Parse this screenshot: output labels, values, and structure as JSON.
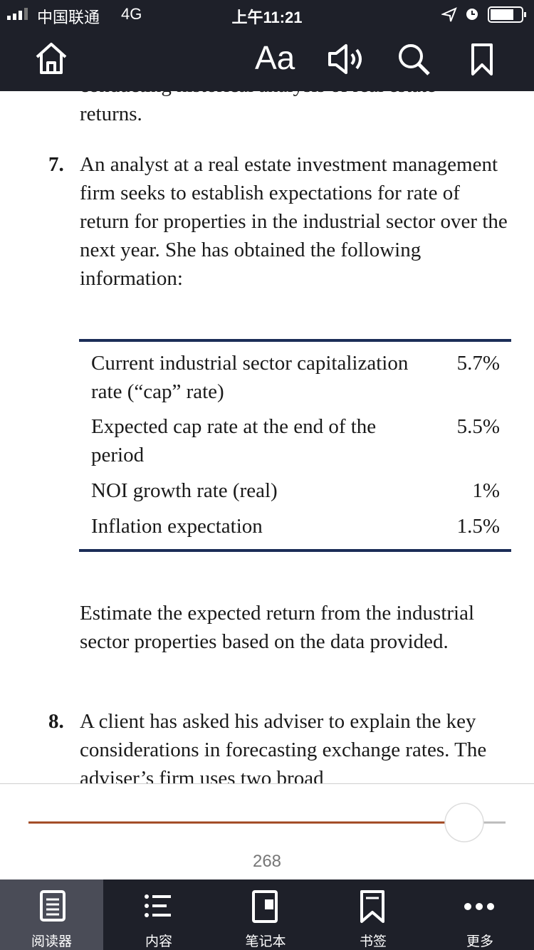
{
  "status_bar": {
    "carrier": "中国联通",
    "network": "4G",
    "time": "上午11:21"
  },
  "toolbar": {
    "font_button": "Aa"
  },
  "content": {
    "previous_tail": [
      "conducting historical analysis of real estate",
      "returns."
    ],
    "question_7": {
      "number": "7.",
      "text": "An analyst at a real estate investment management firm seeks to establish expectations for rate of return for properties in the industrial sector over the next year. She has obtained the following information:",
      "table": {
        "rows": [
          [
            "Current industrial sector capitalization rate (“cap” rate)",
            "5.7%"
          ],
          [
            "Expected cap rate at the end of the period",
            "5.5%"
          ],
          [
            "NOI growth rate (real)",
            "1%"
          ],
          [
            "Inflation expectation",
            "1.5%"
          ]
        ]
      },
      "task": "Estimate the expected return from the industrial sector properties based on the data provided."
    },
    "question_8": {
      "number": "8.",
      "text": "A client has asked his adviser to explain the key considerations in forecasting exchange rates. The adviser’s firm uses two broad"
    }
  },
  "progress": {
    "page": "268"
  },
  "tabs": [
    "阅读器",
    "内容",
    "笔记本",
    "书签",
    "更多"
  ]
}
